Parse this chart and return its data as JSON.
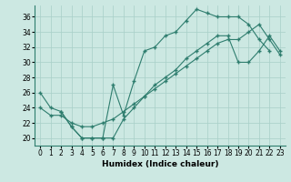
{
  "background_color": "#cce8e2",
  "line_color": "#2e7d6e",
  "grid_color": "#a8cfc8",
  "xlabel": "Humidex (Indice chaleur)",
  "xlim": [
    -0.5,
    23.5
  ],
  "ylim": [
    19.0,
    37.5
  ],
  "yticks": [
    20,
    22,
    24,
    26,
    28,
    30,
    32,
    34,
    36
  ],
  "xticks": [
    0,
    1,
    2,
    3,
    4,
    5,
    6,
    7,
    8,
    9,
    10,
    11,
    12,
    13,
    14,
    15,
    16,
    17,
    18,
    19,
    20,
    21,
    22,
    23
  ],
  "curve1_x": [
    0,
    1,
    2,
    3,
    4,
    5,
    6,
    7,
    8,
    9,
    10,
    11,
    12,
    13,
    14,
    15,
    16,
    17,
    18,
    19,
    20,
    21,
    22
  ],
  "curve1_y": [
    26,
    24,
    23.5,
    21.5,
    20,
    20,
    20,
    27,
    23,
    27.5,
    31.5,
    32,
    33.5,
    34,
    35.5,
    37,
    36.5,
    36,
    36,
    36,
    35,
    33,
    31.5
  ],
  "curve2_x": [
    0,
    1,
    2,
    3,
    4,
    5,
    6,
    7,
    8,
    9,
    10,
    11,
    12,
    13,
    14,
    15,
    16,
    17,
    18,
    19,
    20,
    21,
    22,
    23
  ],
  "curve2_y": [
    24,
    23,
    23,
    22,
    21.5,
    21.5,
    22,
    22.5,
    23.5,
    24.5,
    25.5,
    26.5,
    27.5,
    28.5,
    29.5,
    30.5,
    31.5,
    32.5,
    33,
    33,
    34,
    35,
    33,
    31
  ],
  "curve3_x": [
    2,
    3,
    4,
    5,
    6,
    7,
    8,
    9,
    10,
    11,
    12,
    13,
    14,
    15,
    16,
    17,
    18,
    19,
    20,
    21,
    22,
    23
  ],
  "curve3_y": [
    23.5,
    21.5,
    20.0,
    20.0,
    20.0,
    20.0,
    22.5,
    24,
    25.5,
    27,
    28,
    29,
    30.5,
    31.5,
    32.5,
    33.5,
    33.5,
    30,
    30,
    31.5,
    33.5,
    31.5
  ]
}
